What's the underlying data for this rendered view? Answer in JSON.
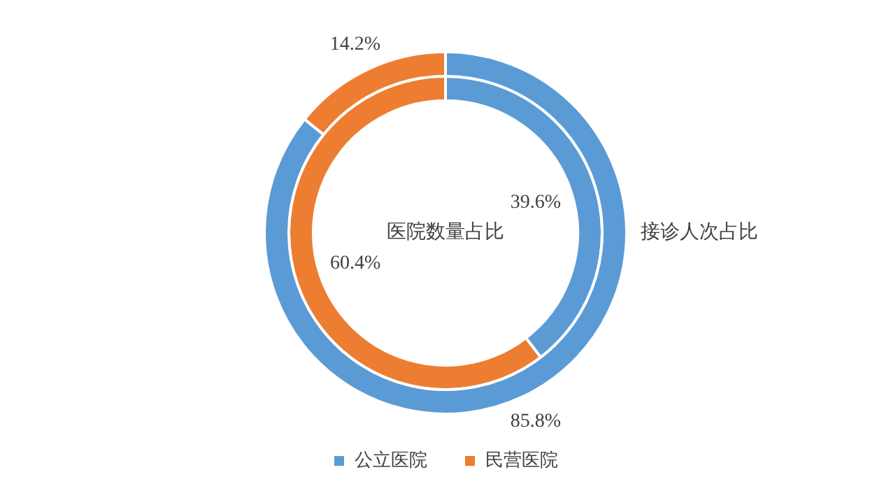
{
  "chart_data": {
    "type": "donut",
    "categories": [
      "公立医院",
      "民营医院"
    ],
    "colors": [
      "#5b9bd5",
      "#ed7d31"
    ],
    "legend": "bottom",
    "series": [
      {
        "name": "接诊人次占比",
        "values": [
          85.8,
          14.2
        ],
        "value_labels": [
          "85.8%",
          "14.2%"
        ]
      },
      {
        "name": "医院数量占比",
        "values": [
          39.6,
          60.4
        ],
        "value_labels": [
          "39.6%",
          "60.4%"
        ]
      }
    ]
  }
}
